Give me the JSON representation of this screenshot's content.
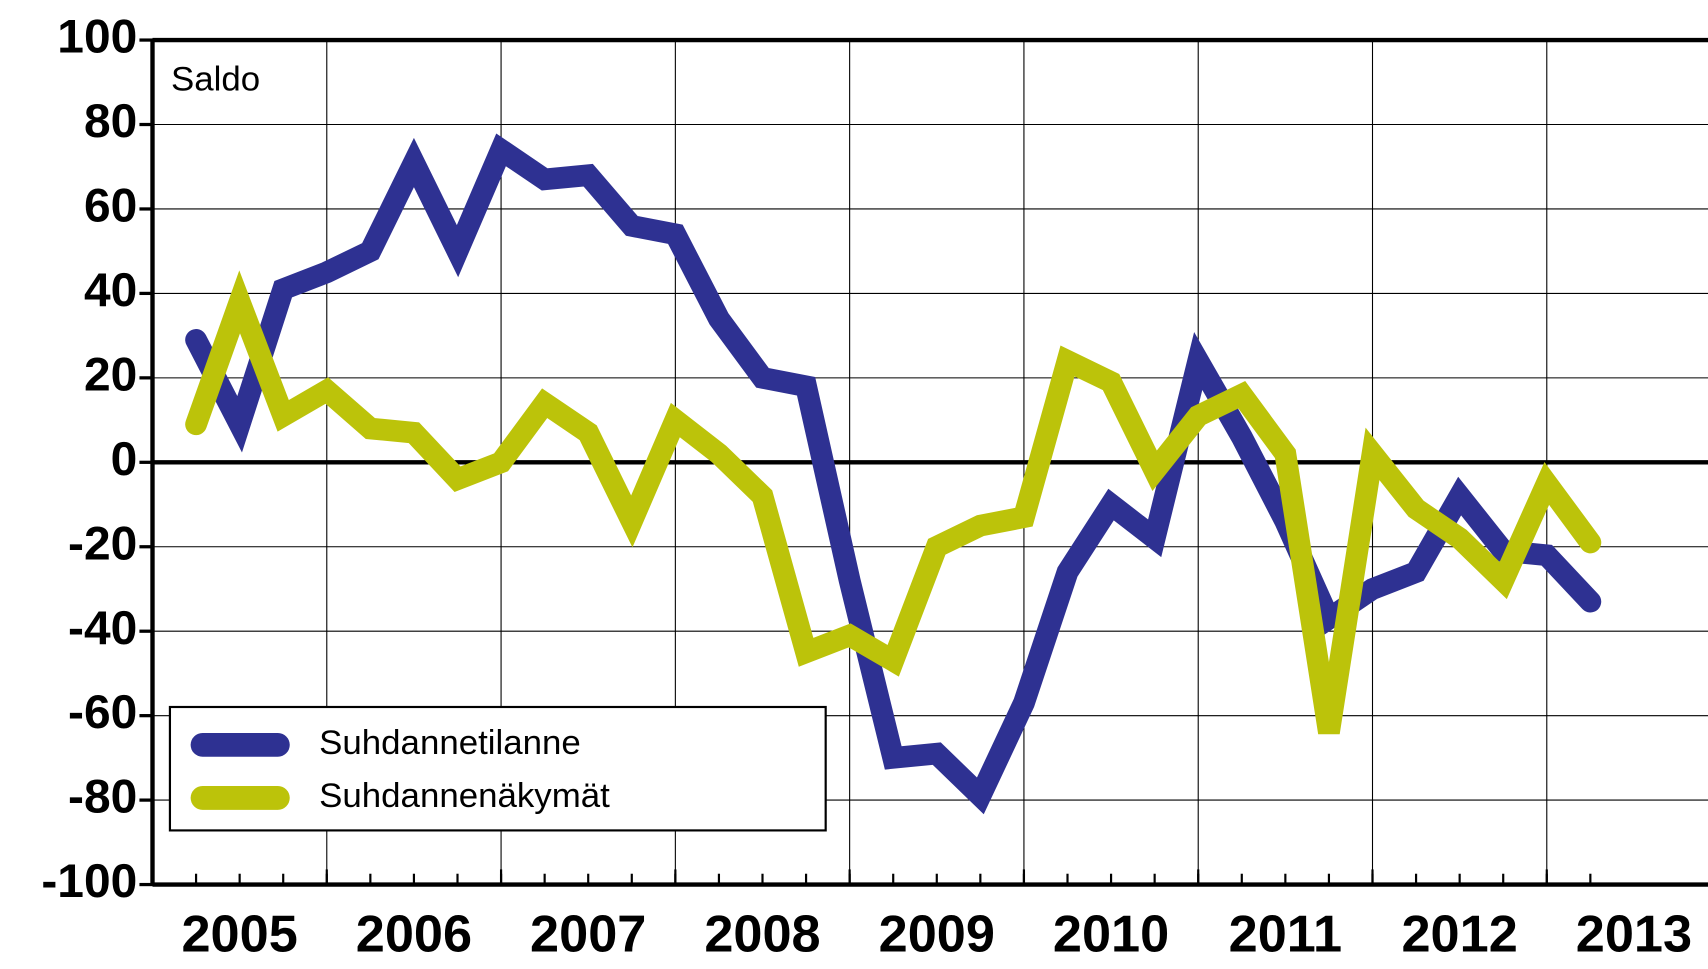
{
  "chart_data": {
    "type": "line",
    "y_label": "Saldo",
    "x": [
      2005.25,
      2005.5,
      2005.75,
      2006,
      2006.25,
      2006.5,
      2006.75,
      2007,
      2007.25,
      2007.5,
      2007.75,
      2008,
      2008.25,
      2008.5,
      2008.75,
      2009,
      2009.25,
      2009.5,
      2009.75,
      2010,
      2010.25,
      2010.5,
      2010.75,
      2011,
      2011.25,
      2011.5,
      2011.75,
      2012,
      2012.25,
      2012.5,
      2012.75,
      2013,
      2013.25
    ],
    "series": [
      {
        "name": "Suhdannetilanne",
        "color": "#2e3192",
        "values": [
          29,
          9,
          41,
          45,
          50,
          71,
          50,
          74,
          67,
          68,
          56,
          54,
          34,
          20,
          18,
          -28,
          -70,
          -69,
          -79,
          -57,
          -26,
          -10,
          -18,
          24,
          6,
          -14,
          -37,
          -30,
          -26,
          -8,
          -21,
          -22,
          -33
        ]
      },
      {
        "name": "Suhdannenäkymät",
        "color": "#bcc30a",
        "values": [
          9,
          38,
          11,
          17,
          8,
          7,
          -4,
          0,
          14,
          7,
          -14,
          10,
          2,
          -8,
          -45,
          -41,
          -47,
          -20,
          -15,
          -13,
          24,
          19,
          -2,
          11,
          16,
          2,
          -64,
          2,
          -11,
          -18,
          -28,
          -5,
          -19
        ]
      }
    ],
    "xlim": [
      2005,
      2013.925
    ],
    "xticks": [
      {
        "value": 2005.5,
        "label": "2005"
      },
      {
        "value": 2006.5,
        "label": "2006"
      },
      {
        "value": 2007.5,
        "label": "2007"
      },
      {
        "value": 2008.5,
        "label": "2008"
      },
      {
        "value": 2009.5,
        "label": "2009"
      },
      {
        "value": 2010.5,
        "label": "2010"
      },
      {
        "value": 2011.5,
        "label": "2011"
      },
      {
        "value": 2012.5,
        "label": "2012"
      },
      {
        "value": 2013.5,
        "label": "2013"
      }
    ],
    "xgrid": [
      2006,
      2007,
      2008,
      2009,
      2010,
      2011,
      2012,
      2013
    ],
    "ylim": [
      -100,
      100
    ],
    "yticks": [
      -100,
      -80,
      -60,
      -40,
      -20,
      0,
      20,
      40,
      60,
      80,
      100
    ],
    "grid": true,
    "legend": "lower left"
  }
}
